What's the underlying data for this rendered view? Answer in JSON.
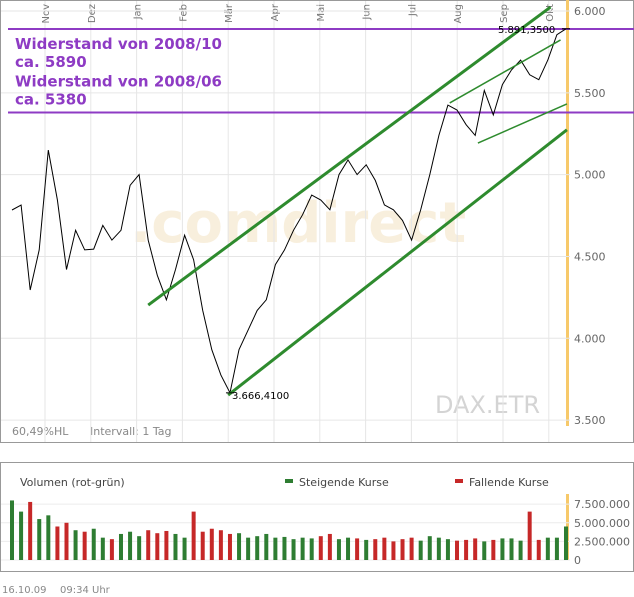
{
  "chart_data": [
    {
      "type": "line",
      "color": "#000000",
      "month_labels": [
        "Nov",
        "Dez",
        "Jan",
        "Feb",
        "Mär",
        "Apr",
        "Mai",
        "Jun",
        "Jul",
        "Aug",
        "Sep",
        "Okt"
      ],
      "values": [
        4784,
        4814,
        4295,
        4540,
        5150,
        4845,
        4420,
        4660,
        4540,
        4545,
        4690,
        4600,
        4660,
        4935,
        5000,
        4600,
        4385,
        4235,
        4420,
        4630,
        4480,
        4170,
        3930,
        3775,
        3666.41,
        3930,
        4050,
        4170,
        4235,
        4450,
        4540,
        4660,
        4755,
        4875,
        4845,
        4785,
        5000,
        5090,
        5000,
        5060,
        4965,
        4815,
        4785,
        4720,
        4600,
        4785,
        5000,
        5240,
        5425,
        5395,
        5305,
        5240,
        5515,
        5365,
        5550,
        5640,
        5700,
        5610,
        5580,
        5700,
        5855,
        5891.35
      ],
      "ylim": [
        3366,
        6055
      ],
      "yticks": [
        {
          "value": 3500,
          "label": "3.500"
        },
        {
          "value": 4000,
          "label": "4.000"
        },
        {
          "value": 4500,
          "label": "4.500"
        },
        {
          "value": 5000,
          "label": "5.000"
        },
        {
          "value": 5500,
          "label": "5.500"
        },
        {
          "value": 6000,
          "label": "6.000"
        }
      ],
      "grid": true,
      "hlines": [
        {
          "value": 5890,
          "label": "Widerstand von 2008/10",
          "sublabel": "ca. 5890",
          "color": "#8e3bc4"
        },
        {
          "value": 5380,
          "label": "Widerstand von 2008/06",
          "sublabel": "ca. 5380",
          "color": "#8e3bc4"
        }
      ],
      "trendlines": [
        {
          "x": [
            15,
            59.3
          ],
          "y": [
            4203,
            6024
          ],
          "color": "#2e8b2e",
          "width": 3
        },
        {
          "x": [
            23.8,
            61.1
          ],
          "y": [
            3653,
            5274
          ],
          "color": "#2e8b2e",
          "width": 3
        },
        {
          "x": [
            48.2,
            60.4
          ],
          "y": [
            5438,
            5823
          ],
          "color": "#2e8b2e",
          "width": 1.5
        },
        {
          "x": [
            51.3,
            61.1
          ],
          "y": [
            5193,
            5432
          ],
          "color": "#2e8b2e",
          "width": 1.5
        }
      ],
      "point_labels": [
        {
          "text": "5.891,3500",
          "index": 61,
          "value": 5891.35
        },
        {
          "text": "3.666,4100",
          "index": 24,
          "value": 3666.41
        }
      ],
      "watermark": ".comdirect",
      "symbol": "DAX.ETR",
      "footer": [
        "60,49%HL",
        "Intervall: 1 Tag"
      ]
    },
    {
      "type": "bar",
      "title": "Volumen (rot-grün)",
      "series": [
        {
          "name": "Steigende Kurse",
          "color": "#2e7d32",
          "values": [
            8000000,
            6500000,
            null,
            5500000,
            6000000,
            null,
            null,
            4000000,
            null,
            4200000,
            3000000,
            null,
            3500000,
            3800000,
            3200000,
            null,
            null,
            null,
            3500000,
            3000000,
            null,
            null,
            null,
            null,
            null,
            3600000,
            3000000,
            3200000,
            3500000,
            3000000,
            3100000,
            2800000,
            3000000,
            2900000,
            null,
            null,
            2800000,
            3000000,
            null,
            2700000,
            null,
            null,
            null,
            null,
            null,
            2600000,
            3200000,
            3000000,
            2800000,
            null,
            null,
            null,
            2500000,
            null,
            2900000,
            2900000,
            2600000,
            null,
            null,
            3000000,
            3000000,
            4500000
          ]
        },
        {
          "name": "Fallende Kurse",
          "color": "#c62828",
          "values": [
            null,
            null,
            7800000,
            null,
            null,
            4500000,
            5000000,
            null,
            3800000,
            null,
            null,
            2800000,
            null,
            null,
            null,
            4000000,
            3600000,
            3900000,
            null,
            null,
            6500000,
            3800000,
            4200000,
            4000000,
            3500000,
            null,
            null,
            null,
            null,
            null,
            null,
            null,
            null,
            null,
            3200000,
            3500000,
            null,
            null,
            2900000,
            null,
            2800000,
            3000000,
            2500000,
            2800000,
            3000000,
            null,
            null,
            null,
            null,
            2600000,
            2700000,
            2900000,
            null,
            2700000,
            null,
            null,
            null,
            6500000,
            2700000,
            null,
            null,
            null
          ]
        }
      ],
      "ylim": [
        0,
        9000000
      ],
      "yticks": [
        0,
        {
          "value": 2500000,
          "label": "2.500.000"
        },
        {
          "value": 5000000,
          "label": "5.000.000"
        },
        {
          "value": 7500000,
          "label": "7.500.000"
        }
      ]
    }
  ],
  "footer": {
    "date": "16.10.09",
    "time": "09:34 Uhr"
  }
}
